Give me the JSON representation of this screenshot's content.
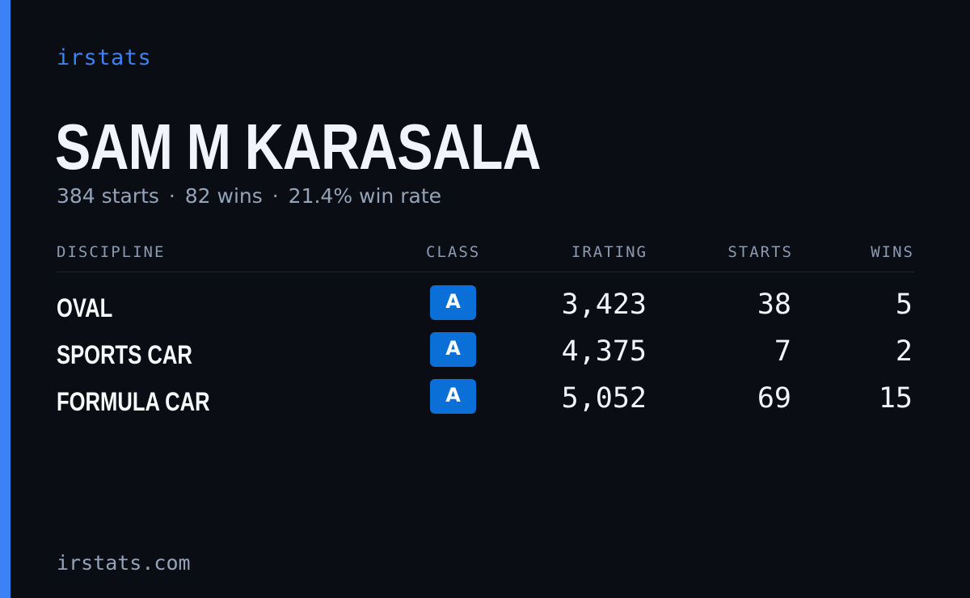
{
  "brand": "irstats",
  "driver": {
    "name": "SAM M KARASALA",
    "starts_text": "384 starts",
    "wins_text": "82 wins",
    "win_rate_text": "21.4% win rate",
    "separator": "·"
  },
  "table": {
    "headers": {
      "discipline": "DISCIPLINE",
      "class": "CLASS",
      "irating": "IRATING",
      "starts": "STARTS",
      "wins": "WINS"
    },
    "rows": [
      {
        "discipline": "OVAL",
        "class": "A",
        "irating": "3,423",
        "starts": "38",
        "wins": "5"
      },
      {
        "discipline": "SPORTS CAR",
        "class": "A",
        "irating": "4,375",
        "starts": "7",
        "wins": "2"
      },
      {
        "discipline": "FORMULA CAR",
        "class": "A",
        "irating": "5,052",
        "starts": "69",
        "wins": "15"
      }
    ]
  },
  "footer": {
    "url": "irstats.com"
  },
  "colors": {
    "background": "#0a0d14",
    "accent": "#3b82f6",
    "class_badge": "#0b6fd8",
    "text_primary": "#f1f5f9",
    "text_muted": "#94a3b8"
  }
}
